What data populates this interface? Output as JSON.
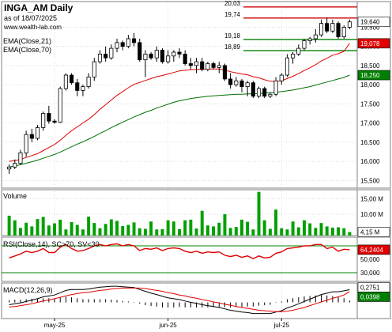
{
  "header": {
    "symbol_period": "INGA_AM Daily",
    "as_of": "as of 18/07/2025",
    "source": "www.wealth-lab.com"
  },
  "colors": {
    "background": "#ffffff",
    "grid": "#c8c8c8",
    "up_candle_fill": "#ffffff",
    "down_candle_fill": "#000000",
    "ema_fast": "#e00000",
    "ema_slow": "#007000",
    "resistance": "#cc0000",
    "support": "#008000",
    "volume_bar": "#00a000",
    "rsi_line": "#e00000",
    "rsi_band": "#008000",
    "macd_hist": "#000000",
    "macd_signal": "#e00000",
    "badge_price": "#ffffff",
    "badge_ema_fast": "#e00000",
    "badge_ema_slow": "#008000"
  },
  "chart_data": [
    {
      "panel": "price",
      "type": "candlestick",
      "legend": [
        "EMA(Close,21)",
        "EMA(Close,70)"
      ],
      "y_ticks": [
        "15,500",
        "16,000",
        "16,500",
        "17,000",
        "17,500",
        "18,000",
        "18,500",
        "19,000",
        "19,500"
      ],
      "x_ticks": [
        "may-25",
        "jun-25",
        "jul-25"
      ],
      "ylim": [
        15.3,
        20.17
      ],
      "candles": [
        {
          "o": 15.8,
          "h": 15.92,
          "l": 15.67,
          "c": 15.85
        },
        {
          "o": 15.85,
          "h": 16.05,
          "l": 15.8,
          "c": 15.95
        },
        {
          "o": 15.95,
          "h": 16.3,
          "l": 15.9,
          "c": 16.22
        },
        {
          "o": 16.22,
          "h": 16.8,
          "l": 16.12,
          "c": 16.7
        },
        {
          "o": 16.7,
          "h": 16.85,
          "l": 16.5,
          "c": 16.6
        },
        {
          "o": 16.6,
          "h": 16.95,
          "l": 16.55,
          "c": 16.88
        },
        {
          "o": 16.88,
          "h": 17.3,
          "l": 16.8,
          "c": 17.25
        },
        {
          "o": 17.25,
          "h": 17.45,
          "l": 16.98,
          "c": 17.05
        },
        {
          "o": 17.05,
          "h": 17.1,
          "l": 16.98,
          "c": 17.02
        },
        {
          "o": 17.02,
          "h": 17.95,
          "l": 17.0,
          "c": 17.9
        },
        {
          "o": 17.9,
          "h": 18.3,
          "l": 17.85,
          "c": 18.25
        },
        {
          "o": 18.25,
          "h": 18.3,
          "l": 18.0,
          "c": 18.05
        },
        {
          "o": 18.05,
          "h": 18.15,
          "l": 17.7,
          "c": 17.85
        },
        {
          "o": 17.85,
          "h": 18.0,
          "l": 17.7,
          "c": 17.95
        },
        {
          "o": 17.95,
          "h": 18.3,
          "l": 17.9,
          "c": 18.2
        },
        {
          "o": 18.2,
          "h": 18.7,
          "l": 18.1,
          "c": 18.6
        },
        {
          "o": 18.6,
          "h": 18.9,
          "l": 18.55,
          "c": 18.8
        },
        {
          "o": 18.8,
          "h": 19.0,
          "l": 18.6,
          "c": 18.7
        },
        {
          "o": 18.7,
          "h": 19.05,
          "l": 18.65,
          "c": 18.95
        },
        {
          "o": 18.95,
          "h": 19.2,
          "l": 18.85,
          "c": 19.1
        },
        {
          "o": 19.1,
          "h": 19.15,
          "l": 18.9,
          "c": 19.0
        },
        {
          "o": 19.0,
          "h": 19.3,
          "l": 18.95,
          "c": 19.2
        },
        {
          "o": 19.2,
          "h": 19.35,
          "l": 19.0,
          "c": 19.1
        },
        {
          "o": 19.1,
          "h": 19.2,
          "l": 18.6,
          "c": 18.65
        },
        {
          "o": 18.65,
          "h": 18.9,
          "l": 18.2,
          "c": 18.8
        },
        {
          "o": 18.8,
          "h": 18.85,
          "l": 18.65,
          "c": 18.7
        },
        {
          "o": 18.7,
          "h": 19.0,
          "l": 18.6,
          "c": 18.9
        },
        {
          "o": 18.9,
          "h": 18.95,
          "l": 18.55,
          "c": 18.6
        },
        {
          "o": 18.6,
          "h": 18.9,
          "l": 18.55,
          "c": 18.75
        },
        {
          "o": 18.75,
          "h": 18.9,
          "l": 18.6,
          "c": 18.85
        },
        {
          "o": 18.85,
          "h": 18.95,
          "l": 18.7,
          "c": 18.8
        },
        {
          "o": 18.8,
          "h": 18.9,
          "l": 18.5,
          "c": 18.55
        },
        {
          "o": 18.55,
          "h": 18.7,
          "l": 18.4,
          "c": 18.5
        },
        {
          "o": 18.5,
          "h": 18.7,
          "l": 18.3,
          "c": 18.6
        },
        {
          "o": 18.6,
          "h": 18.7,
          "l": 18.35,
          "c": 18.4
        },
        {
          "o": 18.4,
          "h": 18.6,
          "l": 18.35,
          "c": 18.55
        },
        {
          "o": 18.55,
          "h": 18.6,
          "l": 18.4,
          "c": 18.45
        },
        {
          "o": 18.45,
          "h": 18.6,
          "l": 18.3,
          "c": 18.5
        },
        {
          "o": 18.5,
          "h": 18.55,
          "l": 18.1,
          "c": 18.15
        },
        {
          "o": 18.15,
          "h": 18.3,
          "l": 17.9,
          "c": 18.0
        },
        {
          "o": 18.0,
          "h": 18.2,
          "l": 17.95,
          "c": 18.1
        },
        {
          "o": 18.1,
          "h": 18.15,
          "l": 17.8,
          "c": 17.95
        },
        {
          "o": 17.95,
          "h": 18.1,
          "l": 17.7,
          "c": 18.05
        },
        {
          "o": 18.05,
          "h": 18.1,
          "l": 17.65,
          "c": 17.7
        },
        {
          "o": 17.7,
          "h": 17.95,
          "l": 17.65,
          "c": 17.9
        },
        {
          "o": 17.9,
          "h": 17.95,
          "l": 17.65,
          "c": 17.7
        },
        {
          "o": 17.7,
          "h": 17.8,
          "l": 17.65,
          "c": 17.75
        },
        {
          "o": 17.75,
          "h": 18.2,
          "l": 17.7,
          "c": 18.1
        },
        {
          "o": 18.1,
          "h": 18.3,
          "l": 18.0,
          "c": 18.25
        },
        {
          "o": 18.25,
          "h": 18.8,
          "l": 18.2,
          "c": 18.7
        },
        {
          "o": 18.7,
          "h": 18.85,
          "l": 18.55,
          "c": 18.8
        },
        {
          "o": 18.8,
          "h": 19.05,
          "l": 18.75,
          "c": 18.95
        },
        {
          "o": 18.95,
          "h": 19.2,
          "l": 18.9,
          "c": 19.15
        },
        {
          "o": 19.15,
          "h": 19.25,
          "l": 19.05,
          "c": 19.2
        },
        {
          "o": 19.2,
          "h": 19.45,
          "l": 19.1,
          "c": 19.3
        },
        {
          "o": 19.3,
          "h": 19.7,
          "l": 19.25,
          "c": 19.6
        },
        {
          "o": 19.6,
          "h": 19.75,
          "l": 19.35,
          "c": 19.4
        },
        {
          "o": 19.4,
          "h": 19.7,
          "l": 19.35,
          "c": 19.6
        },
        {
          "o": 19.6,
          "h": 19.65,
          "l": 19.2,
          "c": 19.25
        },
        {
          "o": 19.25,
          "h": 19.55,
          "l": 19.2,
          "c": 19.5
        },
        {
          "o": 19.5,
          "h": 19.7,
          "l": 19.45,
          "c": 19.64
        }
      ],
      "ema_fast": [
        16.0,
        16.02,
        16.05,
        16.1,
        16.15,
        16.2,
        16.28,
        16.36,
        16.44,
        16.55,
        16.68,
        16.8,
        16.9,
        17.0,
        17.1,
        17.22,
        17.36,
        17.48,
        17.6,
        17.72,
        17.82,
        17.92,
        18.01,
        18.06,
        18.11,
        18.16,
        18.21,
        18.24,
        18.28,
        18.32,
        18.36,
        18.38,
        18.39,
        18.4,
        18.4,
        18.41,
        18.41,
        18.41,
        18.38,
        18.34,
        18.31,
        18.28,
        18.26,
        18.21,
        18.18,
        18.13,
        18.09,
        18.09,
        18.1,
        18.16,
        18.22,
        18.29,
        18.37,
        18.44,
        18.52,
        18.62,
        18.69,
        18.77,
        18.81,
        18.87,
        19.08
      ],
      "ema_slow": [
        15.85,
        15.88,
        15.91,
        15.95,
        15.99,
        16.03,
        16.08,
        16.13,
        16.18,
        16.24,
        16.31,
        16.38,
        16.45,
        16.51,
        16.58,
        16.65,
        16.73,
        16.8,
        16.88,
        16.95,
        17.02,
        17.09,
        17.16,
        17.22,
        17.28,
        17.33,
        17.39,
        17.44,
        17.49,
        17.54,
        17.58,
        17.61,
        17.64,
        17.66,
        17.68,
        17.7,
        17.71,
        17.72,
        17.73,
        17.74,
        17.75,
        17.75,
        17.76,
        17.76,
        17.77,
        17.78,
        17.79,
        17.8,
        17.82,
        17.84,
        17.86,
        17.89,
        17.92,
        17.95,
        17.99,
        18.03,
        18.07,
        18.11,
        18.15,
        18.19,
        18.25
      ],
      "levels": {
        "resistance": [
          20.03,
          19.74
        ],
        "support": [
          19.18,
          18.89
        ]
      },
      "level_labels": [
        "20,03",
        "19,74",
        "19,18",
        "18,89"
      ],
      "last_value_badges": [
        "19,640",
        "19,078",
        "18,250"
      ]
    },
    {
      "panel": "volume",
      "type": "bar",
      "legend": "Volume",
      "y_ticks": [
        "15,00 M",
        "10,00 M"
      ],
      "ylim": [
        3.0,
        18.0
      ],
      "values_millions": [
        9.5,
        8.0,
        5.5,
        7.2,
        6.0,
        8.4,
        9.1,
        6.3,
        7.0,
        8.2,
        5.0,
        7.4,
        6.5,
        5.0,
        9.2,
        7.1,
        5.4,
        6.8,
        8.3,
        7.8,
        6.1,
        6.5,
        7.3,
        5.4,
        5.2,
        7.6,
        5.0,
        5.1,
        8.0,
        7.6,
        5.1,
        8.0,
        8.2,
        5.3,
        11.1,
        6.3,
        6.0,
        7.2,
        10.0,
        5.5,
        5.8,
        8.2,
        7.5,
        5.0,
        17.3,
        8.0,
        5.2,
        11.5,
        5.4,
        5.0,
        7.6,
        5.7,
        8.0,
        7.0,
        5.5,
        7.1,
        6.0,
        5.6,
        5.7,
        5.4,
        4.15
      ],
      "last_value_badges": [
        "4,15 M"
      ]
    },
    {
      "panel": "rsi",
      "type": "line",
      "legend": "RSI(Close,14), SC>70, SV<30",
      "y_ticks": [
        "50,000",
        "30,000"
      ],
      "ylim": [
        17.0,
        83.0
      ],
      "overbought": 70,
      "oversold": 30,
      "values": [
        52,
        55,
        58,
        62,
        60,
        62,
        66,
        60,
        60,
        68,
        72,
        66,
        62,
        63,
        66,
        70,
        72,
        70,
        72,
        73,
        70,
        72,
        70,
        63,
        66,
        65,
        67,
        63,
        66,
        67,
        66,
        62,
        60,
        62,
        59,
        61,
        60,
        61,
        56,
        54,
        56,
        53,
        55,
        51,
        55,
        52,
        53,
        59,
        61,
        66,
        67,
        68,
        70,
        70,
        72,
        72,
        66,
        68,
        62,
        65,
        64.24
      ],
      "last_value_badges": [
        "64,2404"
      ]
    },
    {
      "panel": "macd",
      "type": "line",
      "legend": "MACD(12,26,9)",
      "ylim": [
        -0.35,
        0.42
      ],
      "macd": [
        -0.05,
        -0.03,
        -0.01,
        0.02,
        0.05,
        0.08,
        0.12,
        0.14,
        0.16,
        0.21,
        0.26,
        0.28,
        0.28,
        0.28,
        0.29,
        0.31,
        0.33,
        0.34,
        0.35,
        0.35,
        0.34,
        0.33,
        0.32,
        0.28,
        0.24,
        0.2,
        0.17,
        0.13,
        0.1,
        0.08,
        0.06,
        0.03,
        0.0,
        -0.02,
        -0.05,
        -0.07,
        -0.09,
        -0.11,
        -0.14,
        -0.17,
        -0.19,
        -0.21,
        -0.22,
        -0.24,
        -0.24,
        -0.24,
        -0.24,
        -0.21,
        -0.18,
        -0.12,
        -0.08,
        -0.03,
        0.02,
        0.07,
        0.12,
        0.17,
        0.2,
        0.23,
        0.23,
        0.25,
        0.2751
      ],
      "signal": [
        -0.1,
        -0.09,
        -0.07,
        -0.05,
        -0.03,
        0.0,
        0.03,
        0.05,
        0.08,
        0.11,
        0.14,
        0.17,
        0.19,
        0.21,
        0.22,
        0.24,
        0.26,
        0.27,
        0.29,
        0.3,
        0.31,
        0.31,
        0.31,
        0.31,
        0.3,
        0.28,
        0.26,
        0.24,
        0.21,
        0.19,
        0.16,
        0.14,
        0.11,
        0.09,
        0.06,
        0.04,
        0.01,
        -0.01,
        -0.04,
        -0.06,
        -0.09,
        -0.11,
        -0.13,
        -0.15,
        -0.17,
        -0.18,
        -0.19,
        -0.2,
        -0.2,
        -0.19,
        -0.17,
        -0.14,
        -0.11,
        -0.07,
        -0.03,
        0.01,
        0.05,
        0.09,
        0.12,
        0.16,
        0.2353
      ],
      "last_value_badges": [
        "0,2751",
        "0,0398"
      ]
    }
  ]
}
